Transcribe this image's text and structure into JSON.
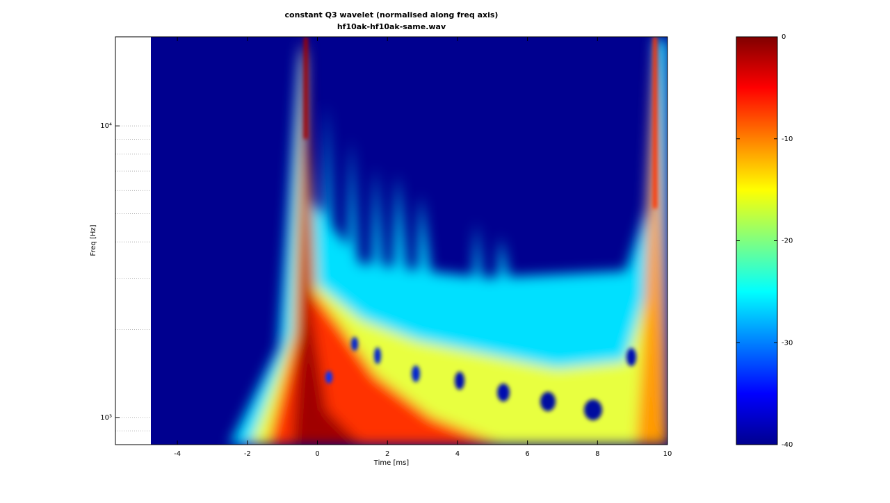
{
  "chart_data": {
    "type": "heatmap",
    "title": "constant Q3 wavelet (normalised along freq axis)",
    "subtitle": "hf10ak-hf10ak-same.wav",
    "xlabel": "Time [ms]",
    "ylabel": "Freq [Hz]",
    "xlim": [
      -5.77,
      10
    ],
    "xticks": [
      -4,
      -2,
      0,
      2,
      4,
      6,
      8,
      10
    ],
    "ylim": [
      807,
      20200
    ],
    "yscale": "log",
    "yticks": [
      {
        "value": 1000,
        "label": "10³"
      },
      {
        "value": 10000,
        "label": "10⁴"
      }
    ],
    "yminorticks": [
      900,
      2000,
      3000,
      4000,
      5000,
      6000,
      7000,
      8000,
      9000
    ],
    "colormap": "jet",
    "zlim": [
      -40,
      0
    ],
    "zticks": [
      0,
      -10,
      -20,
      -30,
      -40
    ]
  }
}
